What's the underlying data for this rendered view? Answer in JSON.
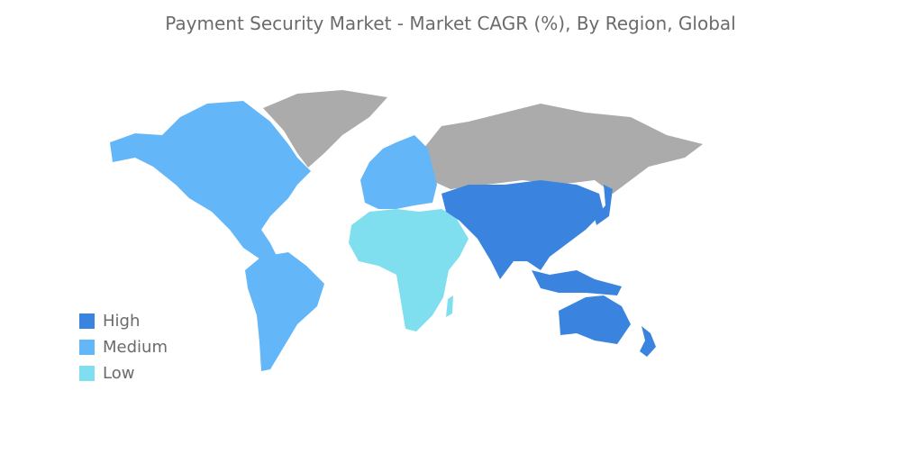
{
  "title": "Payment Security Market - Market CAGR (%), By Region, Global",
  "colors": {
    "High": "#3a84e0",
    "Medium": "#63b6f8",
    "Low": "#7fdfee",
    "No data": "#ababab"
  },
  "legend": [
    {
      "label": "High",
      "color": "#3a84e0"
    },
    {
      "label": "Medium",
      "color": "#63b6f8"
    },
    {
      "label": "Low",
      "color": "#7fdfee"
    }
  ],
  "regions": [
    {
      "name": "North America",
      "level": "Medium"
    },
    {
      "name": "South America",
      "level": "Medium"
    },
    {
      "name": "Europe",
      "level": "Medium"
    },
    {
      "name": "Middle East and Africa",
      "level": "Low"
    },
    {
      "name": "Asia Pacific",
      "level": "High"
    }
  ]
}
